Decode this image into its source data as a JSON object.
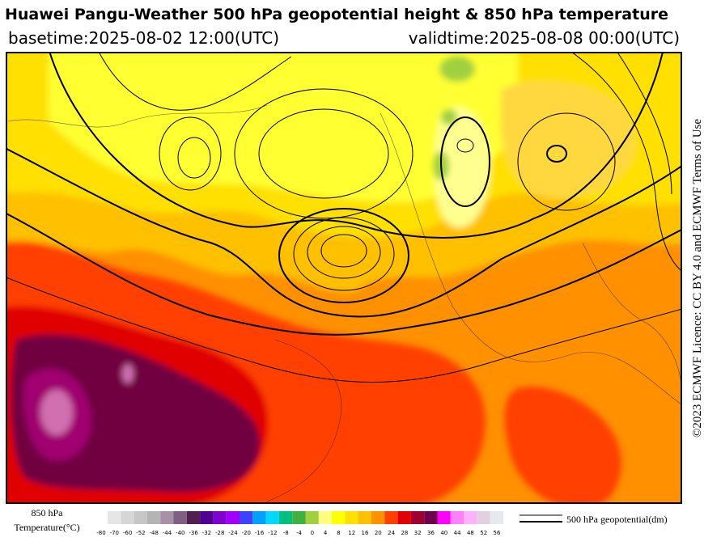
{
  "header": {
    "title": "Huawei Pangu-Weather 500 hPa geopotential height & 850 hPa temperature",
    "basetime": "basetime:2025-08-02 12:00(UTC)",
    "validtime": "validtime:2025-08-08 00:00(UTC)"
  },
  "license": "©2023 ECMWF Licence: CC BY 4.0 and ECMWF Terms of Use",
  "colorbar": {
    "title_line1": "850 hPa",
    "title_line2": "Temperature(°C)",
    "ticks": [
      -80,
      -70,
      -60,
      -52,
      -48,
      -44,
      -40,
      -36,
      -32,
      -28,
      -24,
      -20,
      -16,
      -12,
      -8,
      -4,
      0,
      4,
      8,
      12,
      16,
      20,
      24,
      28,
      32,
      36,
      40,
      44,
      48,
      52,
      56
    ],
    "colors": [
      "#e6e6e6",
      "#d6d6d6",
      "#c6c6c6",
      "#b4b4b4",
      "#a890a8",
      "#806080",
      "#502050",
      "#500090",
      "#8000d0",
      "#a000ff",
      "#4040ff",
      "#00a0ff",
      "#00d8ff",
      "#00c080",
      "#40b040",
      "#a0d040",
      "#ffff80",
      "#ffff00",
      "#ffe000",
      "#ffc000",
      "#ff9000",
      "#ff4000",
      "#e00000",
      "#a00030",
      "#700050",
      "#ff00ff",
      "#ff80ff",
      "#ffb0ff",
      "#e0d0e0",
      "#e8e8f0"
    ]
  },
  "contour_legend": "500 hPa geopotential(dm)"
}
